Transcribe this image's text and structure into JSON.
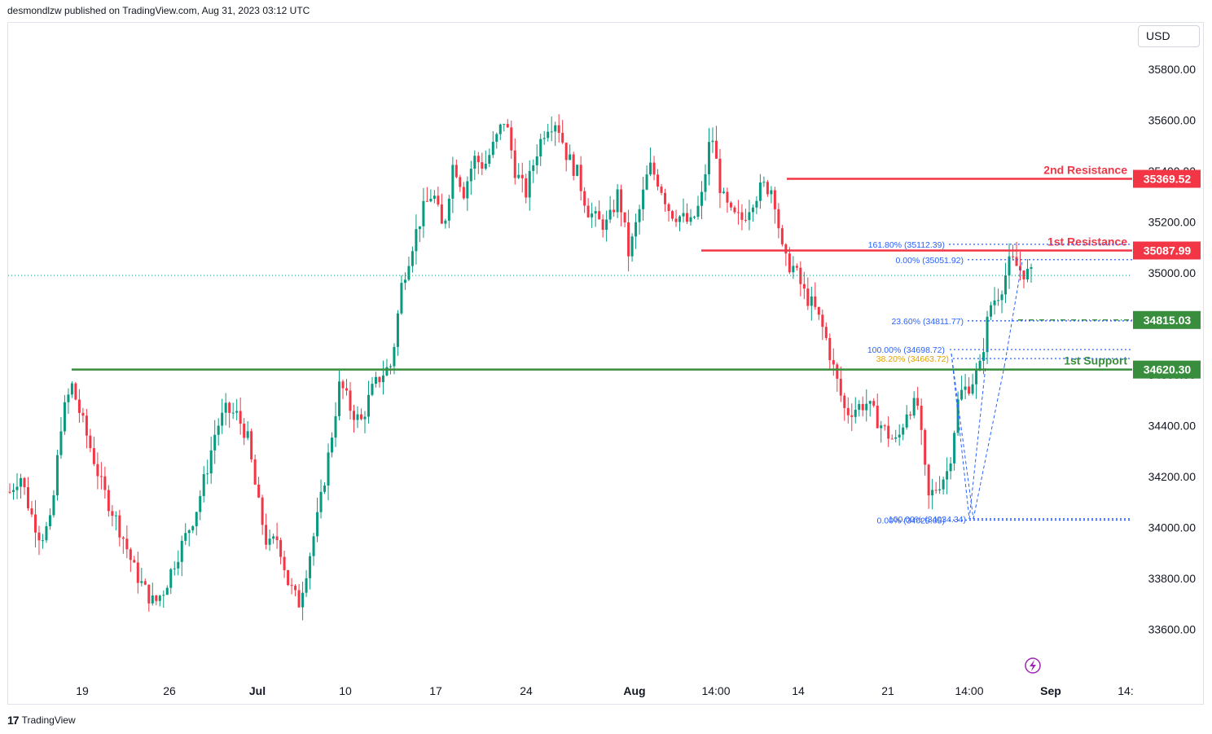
{
  "header": {
    "attribution": "desmondlzw published on TradingView.com, Aug 31, 2023 03:12 UTC"
  },
  "footer": {
    "brand": "TradingView"
  },
  "currency": "USD",
  "chart_data": {
    "type": "candlestick",
    "y_axis": {
      "ticks": [
        "35800.00",
        "35600.00",
        "35400.00",
        "35200.00",
        "35000.00",
        "34800.00",
        "34600.00",
        "34400.00",
        "34200.00",
        "34000.00",
        "33800.00",
        "33600.00"
      ],
      "ylim": [
        33520,
        35950
      ]
    },
    "x_axis": {
      "ticks": [
        "19",
        "26",
        "Jul",
        "10",
        "17",
        "24",
        "Aug",
        "14:00",
        "14",
        "21",
        "14:00",
        "Sep",
        "14:"
      ],
      "bold": [
        "Jul",
        "Aug",
        "Sep"
      ]
    },
    "colors": {
      "up": "#089981",
      "down": "#f23645",
      "resistance": "#f23645",
      "support": "#388e3c",
      "fib": "#2962ff"
    },
    "price_markers": [
      {
        "label": "35369.52",
        "value": 35369.52,
        "color": "#f23645"
      },
      {
        "label": "35087.99",
        "value": 35087.99,
        "color": "#f23645"
      },
      {
        "label": "34815.03",
        "value": 34815.03,
        "color": "#388e3c"
      },
      {
        "label": "34620.30",
        "value": 34620.3,
        "color": "#388e3c"
      }
    ],
    "levels": [
      {
        "name": "2nd Resistance",
        "value": 35369.52,
        "color": "#f23645"
      },
      {
        "name": "1st Resistance",
        "value": 35087.99,
        "color": "#f23645"
      },
      {
        "name": "1st Support",
        "value": 34620.3,
        "color": "#388e3c"
      }
    ],
    "fib_labels": [
      {
        "text": "161.80% (35112.39)",
        "value": 35112.39
      },
      {
        "text": "0.00% (35051.92)",
        "value": 35051.92
      },
      {
        "text": "23.60% (34811.77)",
        "value": 34811.77
      },
      {
        "text": "100.00% (34698.72)",
        "value": 34698.72
      },
      {
        "text": "38.20% (34663.72)",
        "value": 34663.72
      },
      {
        "text": "0.00% (34029.05)",
        "value": 34029.05
      },
      {
        "text": "100.00% (34034.34)",
        "value": 34034.34
      }
    ],
    "last_price": 34990,
    "price_path": [
      34140,
      34210,
      34060,
      33960,
      34020,
      34420,
      34560,
      34420,
      34290,
      34150,
      34060,
      33960,
      33840,
      33760,
      33700,
      33760,
      33870,
      33960,
      34060,
      34210,
      34390,
      34460,
      34440,
      34360,
      34110,
      33920,
      33960,
      33780,
      33700,
      33880,
      34070,
      34310,
      34570,
      34470,
      34410,
      34530,
      34600,
      34640,
      34960,
      35110,
      35240,
      35320,
      35160,
      35440,
      35320,
      35450,
      35420,
      35510,
      35610,
      35400,
      35310,
      35470,
      35580,
      35600,
      35460,
      35390,
      35250,
      35200,
      35190,
      35320,
      35070,
      35240,
      35420,
      35350,
      35240,
      35220,
      35190,
      35280,
      35560,
      35300,
      35220,
      35210,
      35290,
      35340,
      35330,
      35050,
      35020,
      34920,
      34860,
      34760,
      34600,
      34450,
      34470,
      34490,
      34430,
      34370,
      34330,
      34470,
      34480,
      34110,
      34170,
      34230,
      34520,
      34560,
      34620,
      34870,
      34930,
      35050,
      35010,
      34990
    ],
    "annotation_icon": "lightning-icon"
  }
}
